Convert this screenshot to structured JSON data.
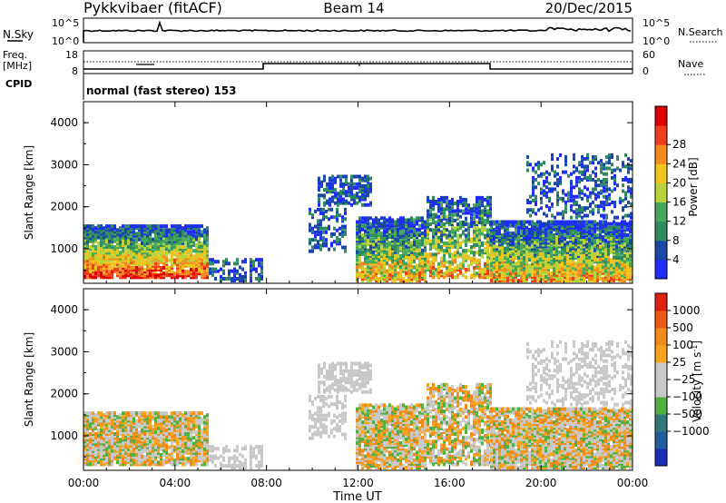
{
  "header": {
    "radar": "Pykkvibaer (fitACF)",
    "beam": "Beam 14",
    "date": "20/Dec/2015"
  },
  "noise_panel": {
    "left_label": "N.Sky",
    "left_ticks": [
      "10^5",
      "10^0"
    ],
    "right_ticks": [
      "10^5",
      "10^0"
    ],
    "right_label": "N.Search"
  },
  "freq_panel": {
    "left_label_1": "Freq.",
    "left_label_2": "[MHz]",
    "left_ticks": [
      "18",
      "8"
    ],
    "right_ticks": [
      "60",
      "0"
    ],
    "right_label": "Nave",
    "cpid_label": "CPID",
    "cpid_value": "normal (fast stereo) 153"
  },
  "chart_data": [
    {
      "type": "heatmap",
      "name": "power",
      "ylabel": "Slant Range [km]",
      "ylim": [
        180,
        4500
      ],
      "yticks": [
        "1000",
        "2000",
        "3000",
        "4000"
      ],
      "xlim": [
        "00:00",
        "00:00"
      ],
      "colorbar": {
        "label": "Power [dB]",
        "colors": [
          "#1f2bff",
          "#1a48a6",
          "#2f8a60",
          "#46a85a",
          "#b8d23c",
          "#f2c41c",
          "#f58a1f",
          "#ef3e1a",
          "#dd0000"
        ],
        "ticks": [
          "4",
          "8",
          "12",
          "16",
          "20",
          "24",
          "28"
        ]
      }
    },
    {
      "type": "heatmap",
      "name": "velocity",
      "ylabel": "Slant Range [km]",
      "ylim": [
        180,
        4500
      ],
      "yticks": [
        "1000",
        "2000",
        "3000",
        "4000"
      ],
      "xlim": [
        "00:00",
        "00:00"
      ],
      "xticks": [
        "00:00",
        "04:00",
        "08:00",
        "12:00",
        "16:00",
        "20:00",
        "00:00"
      ],
      "xlabel": "Time UT",
      "colorbar": {
        "label": "Velocity [m s",
        "label_sup": "-1",
        "label_end": "]",
        "colors": [
          "#1a2eb8",
          "#1f5fa0",
          "#2f7a78",
          "#52b040",
          "#c8c8c8",
          "#c8c8c8",
          "#f7a21b",
          "#f28a1a",
          "#ef5a12",
          "#e02010"
        ],
        "ticks": [
          "1000",
          "500",
          "100",
          "25",
          "−25",
          "−100",
          "−500",
          "−1000"
        ]
      }
    }
  ]
}
